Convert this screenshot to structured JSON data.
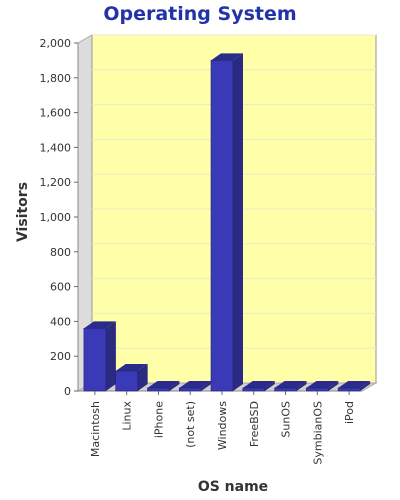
{
  "chart_data": {
    "type": "bar",
    "title": "Operating System",
    "xlabel": "OS name",
    "ylabel": "Visitors",
    "categories": [
      "Macintosh",
      "Linux",
      "iPhone",
      "(not set)",
      "Windows",
      "FreeBSD",
      "SunOS",
      "SymbianOS",
      "iPod"
    ],
    "values": [
      360,
      115,
      5,
      3,
      1900,
      2,
      1,
      1,
      1
    ],
    "ylim": [
      0,
      2000
    ],
    "yticks": [
      0,
      200,
      400,
      600,
      800,
      1000,
      1200,
      1400,
      1600,
      1800,
      2000
    ],
    "ytick_labels": [
      "0",
      "200",
      "400",
      "600",
      "800",
      "1,000",
      "1,200",
      "1,400",
      "1,600",
      "1,800",
      "2,000"
    ],
    "grid": true,
    "colors": {
      "bar_front": "#3a3ab8",
      "bar_side": "#2a2a80",
      "bar_top": "#2b2b8c",
      "plot_background": "#ffffaa",
      "back_wall_side": "#dcdcdc",
      "floor": "#cfcfcf",
      "title": "#2233aa"
    }
  }
}
